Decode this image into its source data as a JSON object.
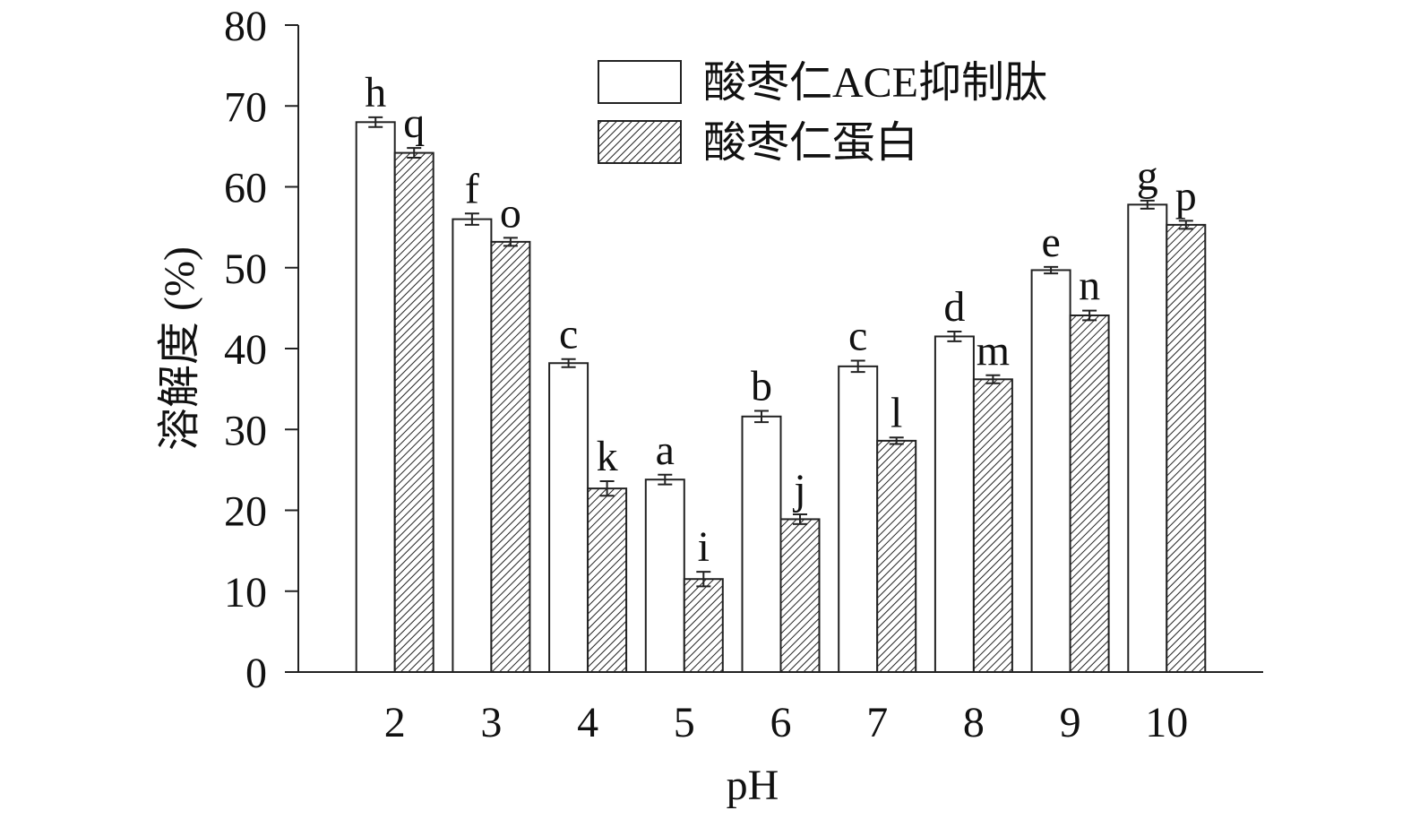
{
  "chart_data": {
    "type": "bar",
    "x_label": "pH",
    "y_label": "溶解度 (%)",
    "x": [
      2,
      3,
      4,
      5,
      6,
      7,
      8,
      9,
      10
    ],
    "xlim": [
      1,
      11
    ],
    "xticks": [
      2,
      3,
      4,
      5,
      6,
      7,
      8,
      9,
      10
    ],
    "ylim": [
      0,
      80
    ],
    "yticks": [
      0,
      10,
      20,
      30,
      40,
      50,
      60,
      70,
      80
    ],
    "legend": "top-right",
    "series": [
      {
        "name": "酸枣仁ACE抑制肽",
        "color": "#ffffff",
        "hatch": false,
        "values": [
          68,
          56,
          38.2,
          23.8,
          31.6,
          37.8,
          41.5,
          49.7,
          57.8
        ],
        "errors": [
          0.6,
          0.7,
          0.5,
          0.6,
          0.7,
          0.7,
          0.6,
          0.4,
          0.5
        ],
        "annotations": [
          "h",
          "f",
          "c",
          "a",
          "b",
          "c",
          "d",
          "e",
          "g"
        ]
      },
      {
        "name": "酸枣仁蛋白",
        "color": "#ffffff",
        "hatch": true,
        "values": [
          64.2,
          53.2,
          22.7,
          11.5,
          18.9,
          28.6,
          36.2,
          44.1,
          55.3
        ],
        "errors": [
          0.6,
          0.5,
          0.9,
          0.9,
          0.6,
          0.4,
          0.5,
          0.6,
          0.5
        ],
        "annotations": [
          "q",
          "o",
          "k",
          "i",
          "j",
          "l",
          "m",
          "n",
          "p"
        ]
      }
    ]
  }
}
